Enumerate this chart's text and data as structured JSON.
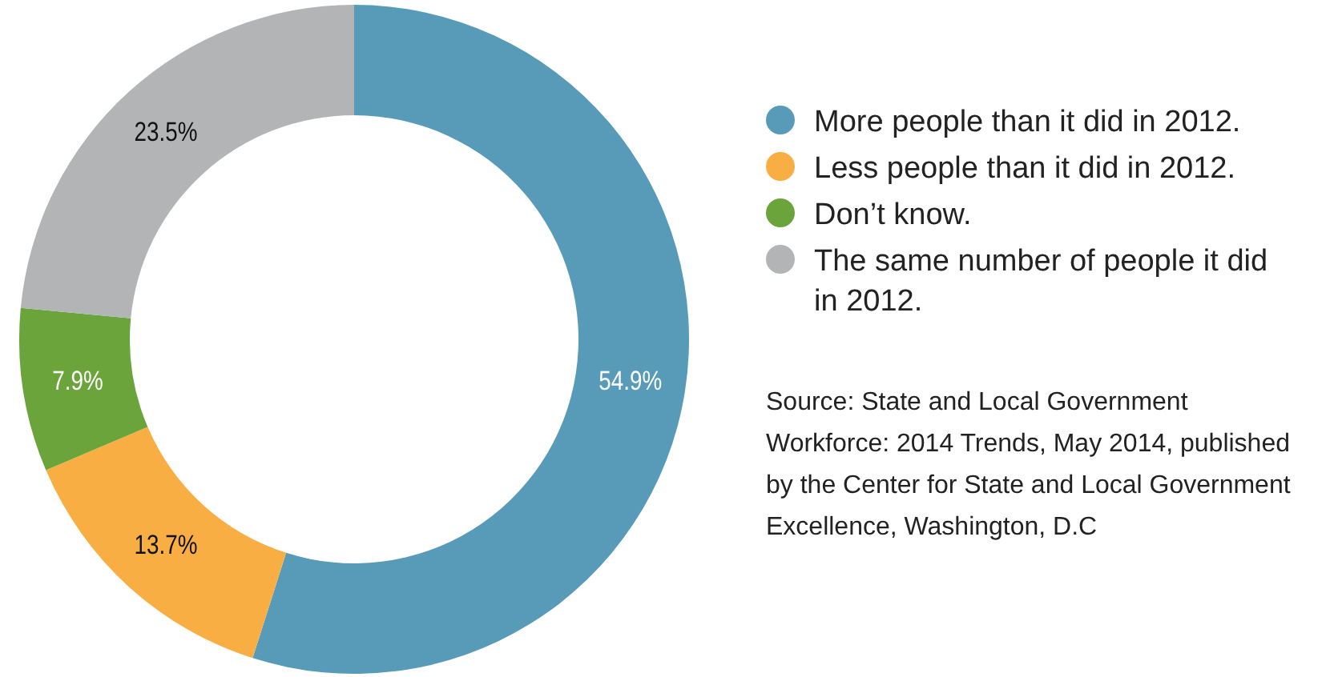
{
  "chart_data": {
    "type": "donut",
    "categories": [
      "More people than it did in 2012.",
      "Less people than it did in 2012.",
      "Don’t know.",
      "The same number of people it did in 2012."
    ],
    "values": [
      54.9,
      13.7,
      7.9,
      23.5
    ],
    "colors": [
      "#579bb9",
      "#f8ae42",
      "#6aa43a",
      "#b2b4b6"
    ],
    "value_labels": [
      "54.9%",
      "13.7%",
      "7.9%",
      "23.5%"
    ],
    "legend": "right",
    "annotations": [
      "Source: State and Local Government Workforce: 2014 Trends, May 2014, published by the Center for State and Local Government Excellence, Washington, D.C"
    ]
  }
}
